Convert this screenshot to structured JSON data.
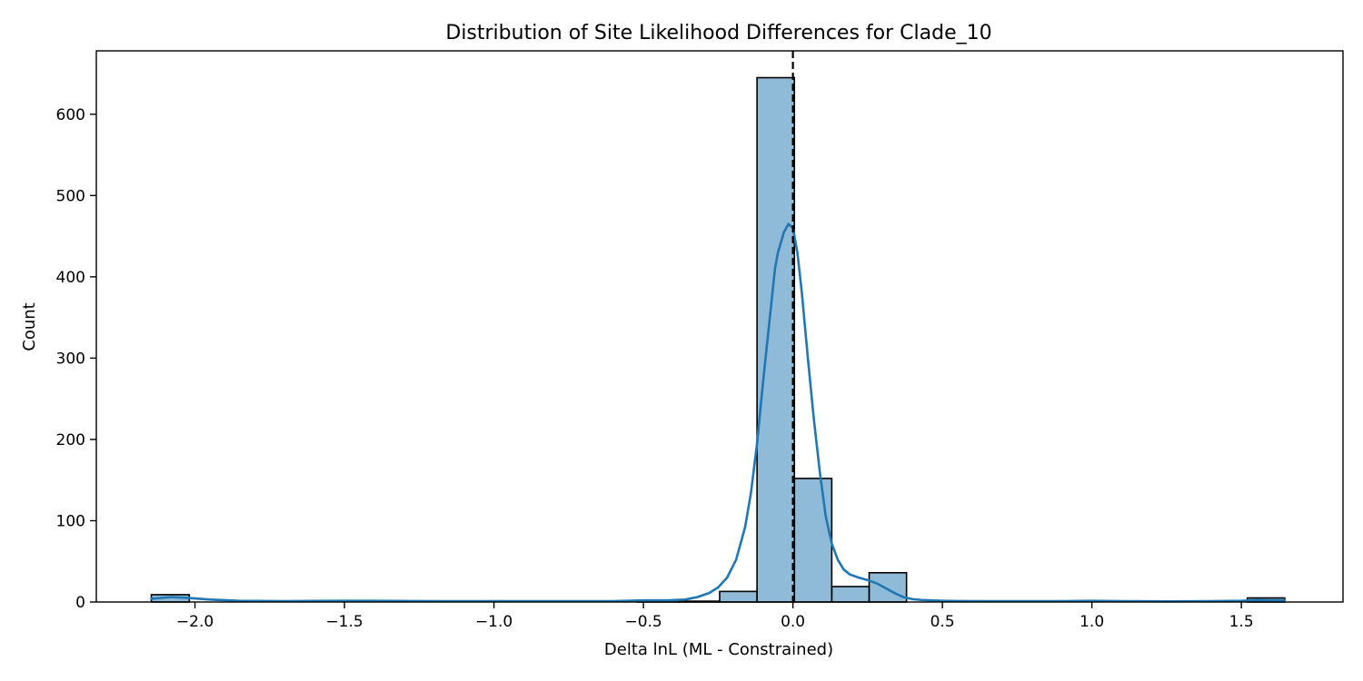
{
  "chart_data": {
    "type": "bar",
    "title": "Distribution of Site Likelihood Differences for Clade_10",
    "xlabel": "Delta lnL (ML - Constrained)",
    "ylabel": "Count",
    "xlim": [
      -2.33,
      1.84
    ],
    "ylim": [
      0,
      678
    ],
    "x_ticks": [
      -2.0,
      -1.5,
      -1.0,
      -0.5,
      0.0,
      0.5,
      1.0,
      1.5
    ],
    "x_tick_labels": [
      "−2.0",
      "−1.5",
      "−1.0",
      "−0.5",
      "0.0",
      "0.5",
      "1.0",
      "1.5"
    ],
    "y_ticks": [
      0,
      100,
      200,
      300,
      400,
      500,
      600
    ],
    "y_tick_labels": [
      "0",
      "100",
      "200",
      "300",
      "400",
      "500",
      "600"
    ],
    "bins": [
      {
        "x0": -2.146,
        "x1": -2.019,
        "count": 9
      },
      {
        "x0": -0.52,
        "x1": -0.38,
        "count": 2
      },
      {
        "x0": -0.38,
        "x1": -0.245,
        "count": 1
      },
      {
        "x0": -0.245,
        "x1": -0.12,
        "count": 13
      },
      {
        "x0": -0.12,
        "x1": 0.005,
        "count": 645
      },
      {
        "x0": 0.005,
        "x1": 0.13,
        "count": 152
      },
      {
        "x0": 0.13,
        "x1": 0.255,
        "count": 19
      },
      {
        "x0": 0.255,
        "x1": 0.38,
        "count": 36
      },
      {
        "x0": 1.52,
        "x1": 1.645,
        "count": 5
      }
    ],
    "kde": {
      "x": [
        -2.146,
        -2.08,
        -2.02,
        -1.95,
        -1.85,
        -1.7,
        -1.55,
        -1.4,
        -1.2,
        -1.0,
        -0.8,
        -0.6,
        -0.5,
        -0.42,
        -0.36,
        -0.32,
        -0.28,
        -0.25,
        -0.22,
        -0.19,
        -0.16,
        -0.14,
        -0.12,
        -0.1,
        -0.08,
        -0.06,
        -0.05,
        -0.03,
        -0.015,
        0.0,
        0.015,
        0.03,
        0.05,
        0.07,
        0.09,
        0.11,
        0.13,
        0.15,
        0.17,
        0.19,
        0.22,
        0.25,
        0.28,
        0.31,
        0.34,
        0.37,
        0.4,
        0.43,
        0.46,
        0.5,
        0.55,
        0.62,
        0.75,
        0.9,
        1.0,
        1.1,
        1.25,
        1.4,
        1.5,
        1.55,
        1.6,
        1.645
      ],
      "y": [
        4,
        6,
        5,
        3,
        1.5,
        1,
        1.5,
        1.5,
        1,
        1,
        1,
        1,
        2,
        2,
        3,
        6,
        11,
        18,
        30,
        52,
        92,
        135,
        195,
        270,
        340,
        410,
        430,
        455,
        465,
        460,
        430,
        380,
        300,
        225,
        160,
        105,
        72,
        52,
        40,
        34,
        30,
        27,
        23,
        17,
        11,
        6,
        3.5,
        2.5,
        2,
        1.5,
        1.2,
        1,
        1,
        1,
        1.5,
        1,
        0.8,
        1,
        1.5,
        2.5,
        2,
        2
      ]
    },
    "reference_line": {
      "x": 0.0,
      "style": "dashed",
      "color": "#000000"
    },
    "bar_color": "#1f77b4",
    "kde_color": "#1f77b4",
    "grid": false
  }
}
